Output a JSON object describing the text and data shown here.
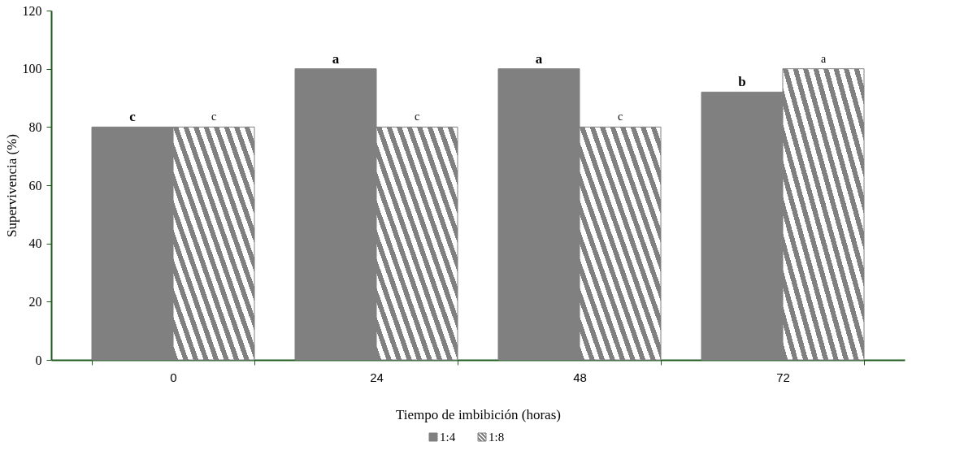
{
  "chart_data": {
    "type": "bar",
    "xlabel": "Tiempo de imbibición (horas)",
    "ylabel": "Supervivencia (%)",
    "categories": [
      "0",
      "24",
      "48",
      "72"
    ],
    "series": [
      {
        "name": "1:4",
        "color": "#808080",
        "values": [
          80,
          100,
          100,
          92
        ],
        "value_labels": [
          "c",
          "a",
          "a",
          "b"
        ]
      },
      {
        "name": "1:8",
        "color": "#808080",
        "values": [
          80,
          80,
          80,
          100
        ],
        "value_labels": [
          "c",
          "c",
          "c",
          "a"
        ]
      }
    ],
    "ylim": [
      0,
      120
    ],
    "yticks": [
      0,
      20,
      40,
      60,
      80,
      100,
      120
    ],
    "grid": false,
    "legend": "bottom"
  }
}
